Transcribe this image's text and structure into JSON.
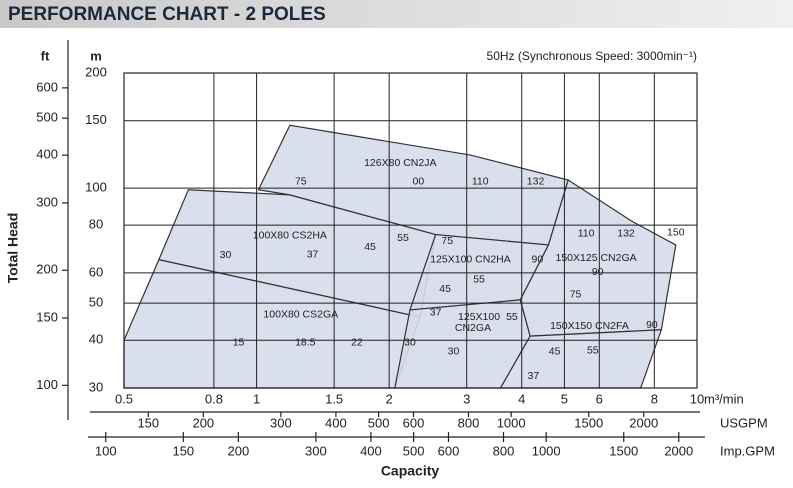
{
  "chart_data": {
    "type": "area",
    "title": "PERFORMANCE CHART - 2 POLES",
    "subtitle": "50Hz (Synchronous Speed: 3000min⁻¹)",
    "xlabel": "Capacity",
    "ylabel": "Total Head",
    "x_unit": "m³/min",
    "y_unit": "m",
    "y2_unit": "ft",
    "x2_unit": "USGPM",
    "x3_unit": "Imp.GPM",
    "log_scale": true,
    "grid": true,
    "color": "#d5dbeb",
    "xlim": [
      0.5,
      10
    ],
    "xticks": [
      0.5,
      0.8,
      1,
      1.5,
      2,
      3,
      4,
      5,
      6,
      8,
      10
    ],
    "ylim": [
      30,
      200
    ],
    "yticks": [
      30,
      40,
      50,
      60,
      80,
      100,
      150,
      200
    ],
    "y2lim": [
      98.4,
      656.2
    ],
    "y2ticks": [
      100,
      150,
      200,
      300,
      400,
      500,
      600
    ],
    "x2lim": [
      132.1,
      2642
    ],
    "x2ticks": [
      150,
      200,
      300,
      400,
      500,
      600,
      800,
      1000,
      1500,
      2000
    ],
    "x3lim": [
      110,
      2200
    ],
    "x3ticks": [
      100,
      150,
      200,
      300,
      400,
      500,
      600,
      800,
      1000,
      1500,
      2000
    ],
    "regions": [
      {
        "x": [
          0.5,
          0.5,
          0.6,
          2.35,
          2.06
        ],
        "y": [
          30,
          40,
          65,
          46,
          30
        ]
      },
      {
        "x": [
          0.6,
          0.7,
          1.19,
          2.55,
          2.35
        ],
        "y": [
          65,
          99,
          96,
          75.6,
          46
        ]
      },
      {
        "x": [
          1.01,
          1.19,
          3.06,
          5.1,
          4.6,
          2.55,
          1.19
        ],
        "y": [
          99,
          146,
          122,
          105,
          71,
          75.6,
          96
        ]
      },
      {
        "x": [
          2.55,
          4.6,
          3.97,
          2.23
        ],
        "y": [
          75.6,
          71,
          51,
          48
        ]
      },
      {
        "x": [
          2.23,
          3.97,
          4.18,
          3.58,
          2.06
        ],
        "y": [
          48,
          51,
          41,
          30,
          30
        ]
      },
      {
        "x": [
          5.1,
          7.1,
          8.95,
          8.3,
          4.18,
          3.97,
          4.6
        ],
        "y": [
          105,
          82,
          71,
          42.6,
          41,
          51,
          71
        ]
      },
      {
        "x": [
          4.18,
          8.3,
          7.45,
          3.58
        ],
        "y": [
          41,
          42.6,
          30,
          30
        ]
      }
    ],
    "annotations": [
      {
        "text": "126X80 CN2JA",
        "x": 2.12,
        "y": 116
      },
      {
        "text": "75",
        "x": 1.26,
        "y": 104
      },
      {
        "text": "00",
        "x": 2.33,
        "y": 104
      },
      {
        "text": "110",
        "x": 3.22,
        "y": 104
      },
      {
        "text": "132",
        "x": 4.3,
        "y": 104
      },
      {
        "text": "100X80 CS2HA",
        "x": 1.19,
        "y": 75
      },
      {
        "text": "30",
        "x": 0.85,
        "y": 66.8
      },
      {
        "text": "37",
        "x": 1.34,
        "y": 67
      },
      {
        "text": "45",
        "x": 1.81,
        "y": 70
      },
      {
        "text": "55",
        "x": 2.15,
        "y": 74
      },
      {
        "text": "75",
        "x": 2.71,
        "y": 72.6
      },
      {
        "text": "125X100 CN2HA",
        "x": 3.06,
        "y": 65
      },
      {
        "text": "90",
        "x": 4.34,
        "y": 65
      },
      {
        "text": "55",
        "x": 3.2,
        "y": 57.6
      },
      {
        "text": "45",
        "x": 2.68,
        "y": 54.4
      },
      {
        "text": "37",
        "x": 2.55,
        "y": 47.2
      },
      {
        "text": "125X100",
        "x": 3.2,
        "y": 46
      },
      {
        "text": "CN2GA",
        "x": 3.1,
        "y": 43
      },
      {
        "text": "55",
        "x": 3.8,
        "y": 46
      },
      {
        "text": "100X80 CS2GA",
        "x": 1.26,
        "y": 46.7
      },
      {
        "text": "15",
        "x": 0.91,
        "y": 39.4
      },
      {
        "text": "18.5",
        "x": 1.29,
        "y": 39.4
      },
      {
        "text": "22",
        "x": 1.69,
        "y": 39.4
      },
      {
        "text": "30",
        "x": 2.23,
        "y": 39.4
      },
      {
        "text": "30",
        "x": 2.8,
        "y": 37.3
      },
      {
        "text": "37",
        "x": 4.25,
        "y": 32.2
      },
      {
        "text": "45",
        "x": 4.75,
        "y": 37.3
      },
      {
        "text": "55",
        "x": 5.8,
        "y": 37.6
      },
      {
        "text": "150X150 CN2FA",
        "x": 5.7,
        "y": 43.5
      },
      {
        "text": "90",
        "x": 7.9,
        "y": 43.8
      },
      {
        "text": "150X125 CN2GA",
        "x": 5.9,
        "y": 65.5
      },
      {
        "text": "90",
        "x": 5.95,
        "y": 60.3
      },
      {
        "text": "75",
        "x": 5.3,
        "y": 52.6
      },
      {
        "text": "110",
        "x": 5.6,
        "y": 76
      },
      {
        "text": "132",
        "x": 6.9,
        "y": 76
      },
      {
        "text": "150",
        "x": 8.95,
        "y": 76.5
      }
    ]
  }
}
